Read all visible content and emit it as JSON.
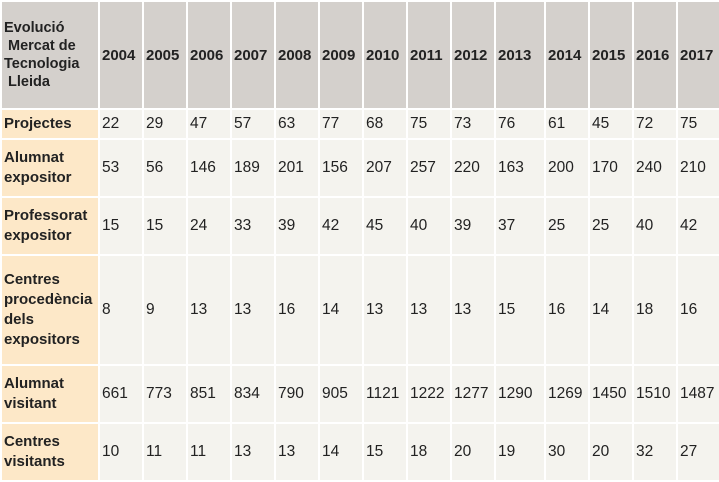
{
  "table": {
    "corner_lines": [
      "Evolució",
      "Mercat de",
      "Tecnologia",
      "Lleida"
    ],
    "years": [
      "2004",
      "2005",
      "2006",
      "2007",
      "2008",
      "2009",
      "2010",
      "2011",
      "2012",
      "2013",
      "2014",
      "2015",
      "2016",
      "2017"
    ],
    "rows": [
      {
        "label_lines": [
          "Projectes"
        ],
        "values": [
          "22",
          "29",
          "47",
          "57",
          "63",
          "77",
          "68",
          "75",
          "73",
          "76",
          "61",
          "45",
          "72",
          "75"
        ]
      },
      {
        "label_lines": [
          "Alumnat",
          "expositor"
        ],
        "values": [
          "53",
          "56",
          "146",
          "189",
          "201",
          "156",
          "207",
          "257",
          "220",
          "163",
          "200",
          "170",
          "240",
          "210"
        ]
      },
      {
        "label_lines": [
          "Professorat",
          "expositor"
        ],
        "values": [
          "15",
          "15",
          "24",
          "33",
          "39",
          "42",
          "45",
          "40",
          "39",
          "37",
          "25",
          "25",
          "40",
          "42"
        ]
      },
      {
        "label_lines": [
          "Centres",
          "procedència",
          "dels",
          "expositors"
        ],
        "values": [
          "8",
          "9",
          "13",
          "13",
          "16",
          "14",
          "13",
          "13",
          "13",
          "15",
          "16",
          "14",
          "18",
          "16"
        ]
      },
      {
        "label_lines": [
          "Alumnat",
          "visitant"
        ],
        "values": [
          "661",
          "773",
          "851",
          "834",
          "790",
          "905",
          "1121",
          "1222",
          "1277",
          "1290",
          "1269",
          "1450",
          "1510",
          "1487"
        ]
      },
      {
        "label_lines": [
          "Centres",
          "visitants"
        ],
        "values": [
          "10",
          "11",
          "11",
          "13",
          "13",
          "14",
          "15",
          "18",
          "20",
          "19",
          "30",
          "20",
          "32",
          "27"
        ]
      }
    ]
  },
  "colors": {
    "header_bg": "#d4d0cc",
    "row_label_bg": "#fde8c8",
    "cell_bg": "#f4f3ee"
  }
}
